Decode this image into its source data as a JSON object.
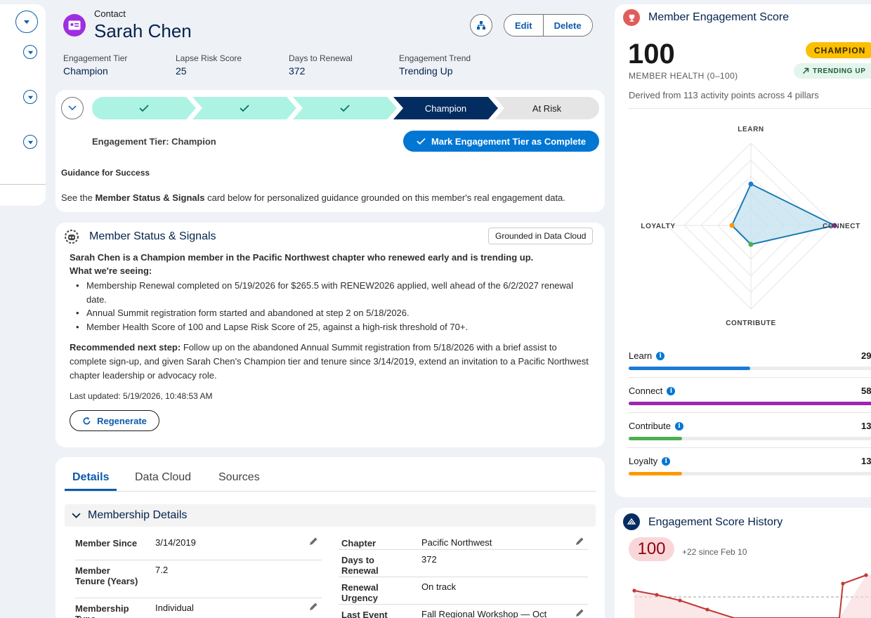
{
  "record": {
    "object_label": "Contact",
    "name": "Sarah Chen",
    "icon": "contact-card-icon",
    "actions": {
      "edit": "Edit",
      "delete": "Delete"
    }
  },
  "highlights": [
    {
      "label": "Engagement Tier",
      "value": "Champion"
    },
    {
      "label": "Lapse Risk Score",
      "value": "25"
    },
    {
      "label": "Days to Renewal",
      "value": "372"
    },
    {
      "label": "Engagement Trend",
      "value": "Trending Up"
    }
  ],
  "path": {
    "stages": [
      {
        "label": "",
        "state": "complete"
      },
      {
        "label": "",
        "state": "complete"
      },
      {
        "label": "",
        "state": "complete"
      },
      {
        "label": "Champion",
        "state": "current"
      },
      {
        "label": "At Risk",
        "state": "incomplete"
      }
    ],
    "current_field": "Engagement Tier: Champion",
    "mark_button": "Mark Engagement Tier as Complete",
    "guidance_title": "Guidance for Success",
    "guidance_pre": "See the ",
    "guidance_bold": "Member Status & Signals",
    "guidance_post": " card below for personalized guidance grounded on this member's real engagement data."
  },
  "signals": {
    "title": "Member Status & Signals",
    "badge": "Grounded in Data Cloud",
    "summary": "Sarah Chen is a Champion member in the Pacific Northwest chapter who renewed early and is trending up.",
    "seeing_label": "What we're seeing:",
    "bullets": [
      "Membership Renewal completed on 5/19/2026 for $265.5 with RENEW2026 applied, well ahead of the 6/2/2027 renewal date.",
      "Annual Summit registration form started and abandoned at step 2 on 5/18/2026.",
      "Member Health Score of 100 and Lapse Risk Score of 25, against a high-risk threshold of 70+."
    ],
    "next_label": "Recommended next step:",
    "next_text": " Follow up on the abandoned Annual Summit registration from 5/18/2026 with a brief assist to complete sign-up, and given Sarah Chen's Champion tier and tenure since 3/14/2019, extend an invitation to a Pacific Northwest chapter leadership or advocacy role.",
    "updated": "Last updated: 5/19/2026, 10:48:53 AM",
    "regenerate": "Regenerate"
  },
  "tabs": [
    "Details",
    "Data Cloud",
    "Sources"
  ],
  "details": {
    "section": "Membership Details",
    "left": [
      {
        "label": "Member Since",
        "value": "3/14/2019",
        "editable": true
      },
      {
        "label": "Member Tenure (Years)",
        "value": "7.2",
        "editable": false
      },
      {
        "label": "Membership Type",
        "value": "Individual",
        "editable": true
      }
    ],
    "right": [
      {
        "label": "Chapter",
        "value": "Pacific Northwest",
        "editable": true
      },
      {
        "label": "Days to Renewal",
        "value": "372",
        "editable": false
      },
      {
        "label": "Renewal Urgency",
        "value": "On track",
        "editable": false
      },
      {
        "label": "Last Event",
        "value": "Fall Regional Workshop — Oct",
        "editable": true
      }
    ]
  },
  "engagement": {
    "title": "Member Engagement Score",
    "score": "100",
    "score_label": "MEMBER HEALTH (0–100)",
    "tier_chip": "CHAMPION",
    "trend_chip": "TRENDING UP",
    "derived": "Derived from 113 activity points across 4 pillars",
    "radar_labels": {
      "top": "LEARN",
      "right": "CONNECT",
      "bottom": "CONTRIBUTE",
      "left": "LOYALTY"
    },
    "pillars": [
      {
        "name": "Learn",
        "value": "29",
        "fill": 0.48,
        "color": "#1b7ad6"
      },
      {
        "name": "Connect",
        "value": "58",
        "fill": 1.0,
        "color": "#9c27b0"
      },
      {
        "name": "Contribute",
        "value": "13",
        "fill": 0.21,
        "color": "#4caf50"
      },
      {
        "name": "Loyalty",
        "value": "13",
        "fill": 0.21,
        "color": "#ff9800"
      }
    ]
  },
  "history": {
    "title": "Engagement Score History",
    "score": "100",
    "delta": "+22 since Feb 10"
  },
  "colors": {
    "brand": "#0176d3",
    "navy": "#032d60",
    "path_done": "#acf3e4",
    "champion": "#fcc003"
  }
}
